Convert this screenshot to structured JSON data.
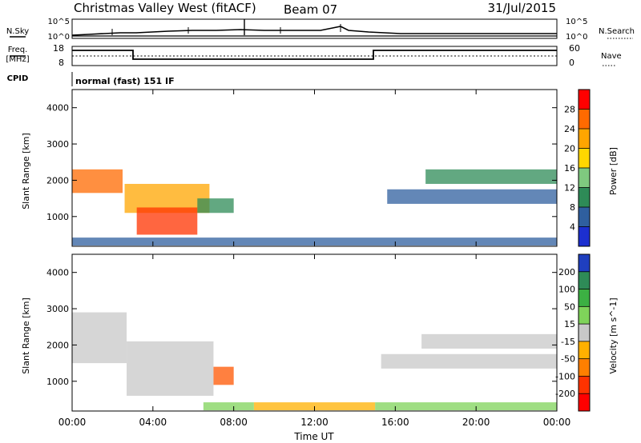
{
  "header": {
    "station": "Christmas Valley West (fitACF)",
    "beam": "Beam 07",
    "date": "31/Jul/2015"
  },
  "noise_panel": {
    "left_label": "N.Sky",
    "right_label": "N.Search",
    "left_ticks": [
      "10^5",
      "10^0"
    ],
    "right_ticks": [
      "10^5",
      "10^0"
    ]
  },
  "freq_panel": {
    "left_label_1": "Freq.",
    "left_label_2": "[MHz]",
    "left_ticks": [
      "18",
      "8"
    ],
    "right_label": "Nave",
    "right_ticks": [
      "60",
      "0"
    ],
    "cpid_label": "CPID",
    "cpid_text": "normal (fast) 151 IF"
  },
  "x_axis": {
    "label": "Time UT",
    "ticks": [
      "00:00",
      "04:00",
      "08:00",
      "12:00",
      "16:00",
      "20:00",
      "00:00"
    ]
  },
  "chart_data": [
    {
      "type": "heatmap",
      "name": "power",
      "ylabel": "Slant Range [km]",
      "yticks": [
        "4000",
        "3000",
        "2000",
        "1000"
      ],
      "ylim": [
        180,
        4500
      ],
      "xlim": [
        "00:00",
        "24:00"
      ],
      "colorbar": {
        "label": "Power [dB]",
        "ticks": [
          "28",
          "24",
          "20",
          "16",
          "12",
          "8",
          "4"
        ],
        "colors": [
          "#ff0000",
          "#ff6a00",
          "#ffa500",
          "#ffd700",
          "#7fc97f",
          "#2e8b57",
          "#2f5f9f",
          "#1c2fd0"
        ]
      },
      "regions": [
        {
          "t0": 0.0,
          "t1": 2.5,
          "r0": 1650,
          "r1": 2300,
          "color": "#ff6a00"
        },
        {
          "t0": 2.6,
          "t1": 6.8,
          "r0": 1100,
          "r1": 1900,
          "color": "#ffa500"
        },
        {
          "t0": 3.2,
          "t1": 6.2,
          "r0": 500,
          "r1": 1250,
          "color": "#ff3300"
        },
        {
          "t0": 6.2,
          "t1": 8.0,
          "r0": 1100,
          "r1": 1500,
          "color": "#2e8b57"
        },
        {
          "t0": 15.6,
          "t1": 24.0,
          "r0": 1350,
          "r1": 1750,
          "color": "#2f5f9f"
        },
        {
          "t0": 17.5,
          "t1": 24.0,
          "r0": 1900,
          "r1": 2300,
          "color": "#2e8b57"
        },
        {
          "t0": 0.0,
          "t1": 24.0,
          "r0": 200,
          "r1": 420,
          "color": "#2f5f9f"
        }
      ]
    },
    {
      "type": "heatmap",
      "name": "velocity",
      "ylabel": "Slant Range [km]",
      "yticks": [
        "4000",
        "3000",
        "2000",
        "1000"
      ],
      "ylim": [
        180,
        4500
      ],
      "xlim": [
        "00:00",
        "24:00"
      ],
      "colorbar": {
        "label": "Velocity [m s^-1]",
        "ticks": [
          "200",
          "100",
          "50",
          "15",
          "-15",
          "-50",
          "-100",
          "-200"
        ],
        "colors": [
          "#1f3fbf",
          "#2e8b57",
          "#3cb043",
          "#7fd35a",
          "#c8c8c8",
          "#ffb000",
          "#ff7f00",
          "#ff3300",
          "#ff0000"
        ]
      },
      "regions": [
        {
          "t0": 0.0,
          "t1": 2.7,
          "r0": 1500,
          "r1": 2900,
          "color": "#c8c8c8"
        },
        {
          "t0": 2.7,
          "t1": 7.0,
          "r0": 600,
          "r1": 2100,
          "color": "#c8c8c8"
        },
        {
          "t0": 7.0,
          "t1": 8.0,
          "r0": 900,
          "r1": 1400,
          "color": "#ff5500"
        },
        {
          "t0": 15.3,
          "t1": 24.0,
          "r0": 1350,
          "r1": 1750,
          "color": "#c8c8c8"
        },
        {
          "t0": 17.3,
          "t1": 24.0,
          "r0": 1900,
          "r1": 2300,
          "color": "#c8c8c8"
        },
        {
          "t0": 9.0,
          "t1": 15.0,
          "r0": 200,
          "r1": 420,
          "color": "#ffb000"
        },
        {
          "t0": 15.0,
          "t1": 24.0,
          "r0": 200,
          "r1": 420,
          "color": "#7fd35a"
        },
        {
          "t0": 6.5,
          "t1": 9.0,
          "r0": 200,
          "r1": 420,
          "color": "#7fd35a"
        }
      ]
    }
  ]
}
